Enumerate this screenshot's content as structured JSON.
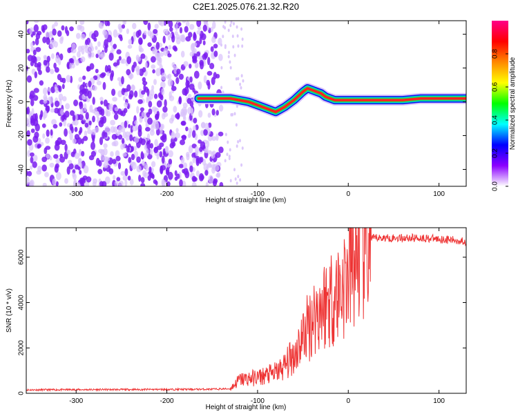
{
  "title": "C2E1.2025.076.21.32.R20",
  "chart_data": [
    {
      "type": "heatmap",
      "xlabel": "Height of straight line (km)",
      "ylabel": "Frequency (Hz)",
      "xlim": [
        -355,
        130
      ],
      "ylim": [
        -50,
        48
      ],
      "xticks": [
        -300,
        -200,
        -100,
        0,
        100
      ],
      "yticks": [
        -40,
        -20,
        0,
        20,
        40
      ],
      "noise_region_x": [
        -355,
        -140
      ],
      "colorbar": {
        "label": "Normalized spectral amplitude",
        "range": [
          0,
          1
        ],
        "ticks": [
          "0.0",
          "0.2",
          "0.4",
          "0.6",
          "0.8"
        ],
        "colors": [
          "#ffffff",
          "#8b00ff",
          "#0000ff",
          "#00ffff",
          "#00ff00",
          "#ffff00",
          "#ff8800",
          "#ff0000",
          "#ff0088"
        ]
      },
      "signal_trace": {
        "x": [
          -165,
          -150,
          -140,
          -130,
          -120,
          -110,
          -100,
          -90,
          -80,
          -70,
          -60,
          -50,
          -45,
          -40,
          -35,
          -30,
          -25,
          -20,
          -15,
          -10,
          -5,
          0,
          20,
          40,
          60,
          80,
          100,
          120,
          130
        ],
        "y": [
          2,
          2,
          2,
          2,
          1,
          0,
          -2,
          -4,
          -6,
          -3,
          1,
          6,
          8,
          7,
          6,
          5,
          3,
          2,
          1,
          1,
          1,
          1,
          1,
          1,
          1,
          2,
          2,
          2,
          2
        ]
      }
    },
    {
      "type": "line",
      "xlabel": "Height of straight line (km)",
      "ylabel": "SNR (10 * v/v)",
      "xlim": [
        -355,
        130
      ],
      "ylim": [
        0,
        7300
      ],
      "xticks": [
        -300,
        -200,
        -100,
        0,
        100
      ],
      "yticks": [
        0,
        2000,
        4000,
        6000
      ],
      "color": "#ee3333",
      "series": [
        {
          "name": "SNR",
          "x": [
            -355,
            -300,
            -200,
            -150,
            -130,
            -120,
            -100,
            -90,
            -80,
            -70,
            -60,
            -50,
            -40,
            -30,
            -20,
            -10,
            0,
            10,
            20,
            25,
            30,
            40,
            60,
            80,
            100,
            130
          ],
          "y": [
            150,
            160,
            170,
            180,
            200,
            600,
            700,
            800,
            900,
            1200,
            1700,
            2500,
            3300,
            3800,
            4200,
            4500,
            5200,
            6200,
            6400,
            6800,
            6850,
            6850,
            6850,
            6850,
            6800,
            6700
          ]
        }
      ]
    }
  ]
}
